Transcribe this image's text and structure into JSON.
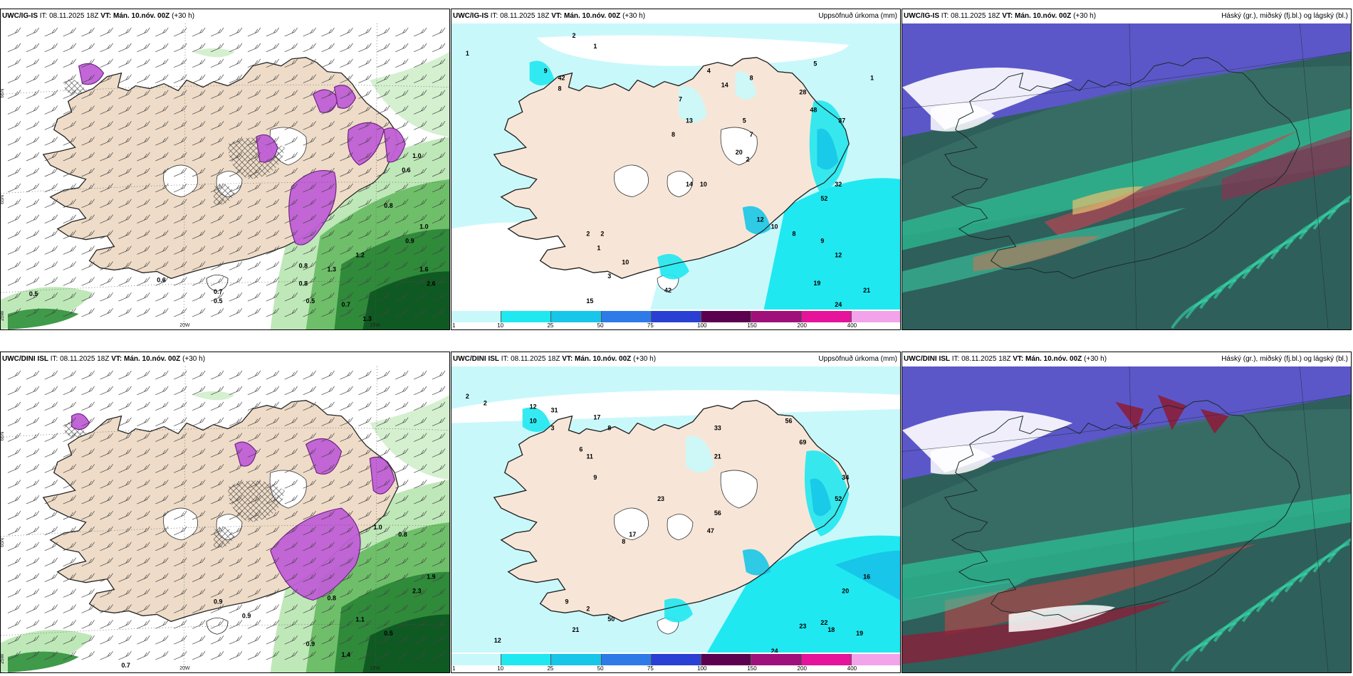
{
  "panels": {
    "r1c1": {
      "model": "UWC/IG-IS",
      "it": "IT: 08.11.2025 18Z",
      "vt": "VT: Mán. 10.nóv. 00Z",
      "lead": "(+30 h)"
    },
    "r1c2": {
      "model": "UWC/IG-IS",
      "it": "IT: 08.11.2025 18Z",
      "vt": "VT: Mán. 10.nóv. 00Z",
      "lead": "(+30 h)",
      "right": "Uppsöfnuð úrkoma (mm)"
    },
    "r1c3": {
      "model": "UWC/IG-IS",
      "it": "IT: 08.11.2025 18Z",
      "vt": "VT: Mán. 10.nóv. 00Z",
      "lead": "(+30 h)",
      "right": "Háský (gr.), miðský (fj.bl.) og lágský (bl.)"
    },
    "r2c1": {
      "model": "UWC/DINI ISL",
      "it": "IT: 08.11.2025 18Z",
      "vt": "VT: Mán. 10.nóv. 00Z",
      "lead": "(+30 h)"
    },
    "r2c2": {
      "model": "UWC/DINI ISL",
      "it": "IT: 08.11.2025 18Z",
      "vt": "VT: Mán. 10.nóv. 00Z",
      "lead": "(+30 h)",
      "right": "Uppsöfnuð úrkoma (mm)"
    },
    "r2c3": {
      "model": "UWC/DINI ISL",
      "it": "IT: 08.11.2025 18Z",
      "vt": "VT: Mán. 10.nóv. 00Z",
      "lead": "(+30 h)",
      "right": "Háský (gr.), miðský (fj.bl.) og lágský (bl.)"
    }
  },
  "axes": {
    "lon20": "20W",
    "lon15": "15W",
    "lat66": "66N",
    "lat65": "65N",
    "lat64": "64N",
    "lon25": "25W"
  },
  "colorbar": {
    "ticks": [
      "1",
      "10",
      "25",
      "50",
      "75",
      "100",
      "150",
      "200",
      "400"
    ],
    "colors": [
      "#c9f8fb",
      "#20e8f0",
      "#17c6e8",
      "#2e7be8",
      "#2a3fd3",
      "#5c0050",
      "#a0107a",
      "#e5149a",
      "#f3a3ea"
    ]
  },
  "precip_labels_top": [
    {
      "t": "1"
    },
    {
      "t": "2"
    },
    {
      "t": "1"
    },
    {
      "t": "9"
    },
    {
      "t": "42"
    },
    {
      "t": "8"
    },
    {
      "t": "4"
    },
    {
      "t": "14"
    },
    {
      "t": "8"
    },
    {
      "t": "5"
    },
    {
      "t": "1"
    },
    {
      "t": "7"
    },
    {
      "t": "13"
    },
    {
      "t": "8"
    },
    {
      "t": "28"
    },
    {
      "t": "48"
    },
    {
      "t": "37"
    },
    {
      "t": "5"
    },
    {
      "t": "7"
    },
    {
      "t": "20"
    },
    {
      "t": "2"
    },
    {
      "t": "14"
    },
    {
      "t": "10"
    },
    {
      "t": "52"
    },
    {
      "t": "32"
    },
    {
      "t": "12"
    },
    {
      "t": "10"
    },
    {
      "t": "8"
    },
    {
      "t": "9"
    },
    {
      "t": "12"
    },
    {
      "t": "19"
    },
    {
      "t": "21"
    },
    {
      "t": "24"
    },
    {
      "t": "15"
    },
    {
      "t": "2"
    },
    {
      "t": "10"
    },
    {
      "t": "42"
    },
    {
      "t": "2"
    },
    {
      "t": "1"
    },
    {
      "t": "3"
    }
  ],
  "precip_labels_bottom": [
    {
      "t": "2"
    },
    {
      "t": "2"
    },
    {
      "t": "12"
    },
    {
      "t": "31"
    },
    {
      "t": "10"
    },
    {
      "t": "3"
    },
    {
      "t": "17"
    },
    {
      "t": "8"
    },
    {
      "t": "6"
    },
    {
      "t": "11"
    },
    {
      "t": "9"
    },
    {
      "t": "33"
    },
    {
      "t": "21"
    },
    {
      "t": "56"
    },
    {
      "t": "69"
    },
    {
      "t": "34"
    },
    {
      "t": "52"
    },
    {
      "t": "23"
    },
    {
      "t": "17"
    },
    {
      "t": "56"
    },
    {
      "t": "47"
    },
    {
      "t": "16"
    },
    {
      "t": "20"
    },
    {
      "t": "22"
    },
    {
      "t": "18"
    },
    {
      "t": "19"
    },
    {
      "t": "23"
    },
    {
      "t": "24"
    },
    {
      "t": "12"
    },
    {
      "t": "21"
    },
    {
      "t": "50"
    },
    {
      "t": "9"
    },
    {
      "t": "2"
    },
    {
      "t": "8"
    }
  ],
  "snow_labels_top": [
    {
      "t": "0.5"
    },
    {
      "t": "0.6"
    },
    {
      "t": "0.7"
    },
    {
      "t": "1.0"
    },
    {
      "t": "0.9"
    },
    {
      "t": "0.8"
    },
    {
      "t": "1.2"
    },
    {
      "t": "1.3"
    },
    {
      "t": "0.5"
    },
    {
      "t": "0.8"
    },
    {
      "t": "0.7"
    },
    {
      "t": "1.3"
    },
    {
      "t": "0.8"
    },
    {
      "t": "0.5"
    },
    {
      "t": "1.6"
    },
    {
      "t": "2.6"
    },
    {
      "t": "1.0"
    },
    {
      "t": "0.6"
    }
  ],
  "snow_labels_bottom": [
    {
      "t": "0.7"
    },
    {
      "t": "0.9"
    },
    {
      "t": "0.9"
    },
    {
      "t": "0.8"
    },
    {
      "t": "1.0"
    },
    {
      "t": "0.5"
    },
    {
      "t": "0.8"
    },
    {
      "t": "1.1"
    },
    {
      "t": "1.9"
    },
    {
      "t": "2.3"
    },
    {
      "t": "0.9"
    },
    {
      "t": "1.4"
    }
  ]
}
